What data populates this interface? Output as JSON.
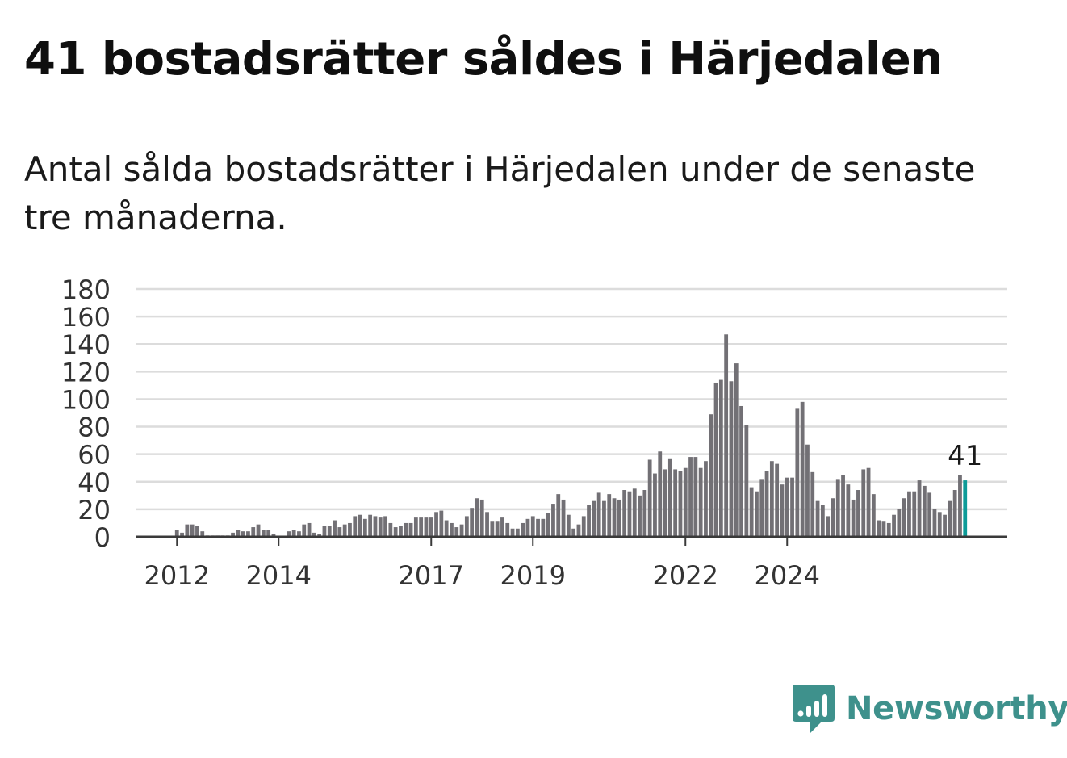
{
  "title": "41 bostadsrätter såldes i Härjedalen",
  "subtitle": "Antal sålda bostadsrätter i Härjedalen under de senaste tre månaderna.",
  "brand": {
    "name": "Newsworthy",
    "icon": "newsworthy-logo-icon",
    "color": "#3e918c"
  },
  "chart_data": {
    "type": "bar",
    "title": "",
    "xlabel": "",
    "ylabel": "",
    "ylim": [
      0,
      180
    ],
    "yticks": [
      0,
      20,
      40,
      60,
      80,
      100,
      120,
      140,
      160,
      180
    ],
    "grid": true,
    "bar_color": "#727075",
    "highlight_color": "#0d9b98",
    "highlight_label": "41",
    "x_tick_labels": [
      {
        "label": "2012",
        "index": 7
      },
      {
        "label": "2014",
        "index": 27
      },
      {
        "label": "2017",
        "index": 57
      },
      {
        "label": "2019",
        "index": 77
      },
      {
        "label": "2022",
        "index": 107
      },
      {
        "label": "2024",
        "index": 127
      }
    ],
    "values": [
      0,
      0,
      0,
      0,
      0,
      0,
      0,
      5,
      3,
      9,
      9,
      8,
      4,
      1,
      1,
      1,
      1,
      1,
      3,
      5,
      4,
      4,
      7,
      9,
      5,
      5,
      2,
      0,
      0,
      4,
      5,
      4,
      9,
      10,
      3,
      2,
      8,
      8,
      12,
      7,
      9,
      10,
      15,
      16,
      13,
      16,
      15,
      14,
      15,
      10,
      7,
      8,
      10,
      10,
      14,
      14,
      14,
      14,
      18,
      19,
      12,
      10,
      7,
      9,
      15,
      21,
      28,
      27,
      18,
      11,
      11,
      14,
      10,
      6,
      6,
      10,
      13,
      15,
      13,
      13,
      17,
      24,
      31,
      27,
      16,
      6,
      9,
      15,
      23,
      26,
      32,
      26,
      31,
      28,
      27,
      34,
      33,
      35,
      30,
      34,
      56,
      46,
      62,
      49,
      57,
      49,
      48,
      50,
      58,
      58,
      50,
      55,
      89,
      112,
      114,
      147,
      113,
      126,
      95,
      81,
      36,
      33,
      42,
      48,
      55,
      53,
      38,
      43,
      43,
      93,
      98,
      67,
      47,
      26,
      23,
      15,
      28,
      42,
      45,
      38,
      27,
      34,
      49,
      50,
      31,
      12,
      11,
      10,
      16,
      20,
      28,
      33,
      33,
      41,
      37,
      32,
      20,
      18,
      16,
      26,
      34,
      45,
      41
    ]
  }
}
